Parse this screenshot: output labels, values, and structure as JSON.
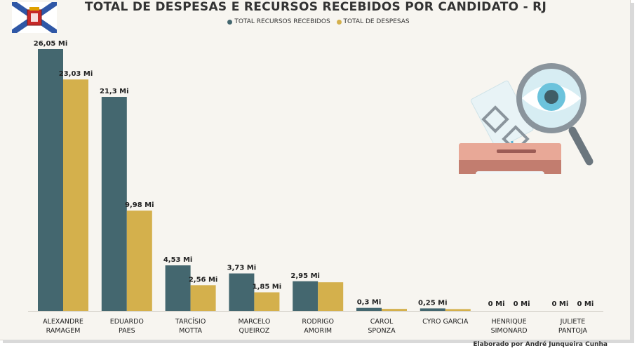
{
  "header": {
    "title": "TOTAL DE DESPESAS E RECURSOS RECEBIDOS POR CANDIDATO - RJ"
  },
  "footer": {
    "credit": "Elaborado por André Junqueira Cunha"
  },
  "colors": {
    "recursos": "#44676f",
    "despesas": "#d4b04c",
    "background": "#f7f5f0"
  },
  "icons": {
    "flag": "rio-de-janeiro-flag-icon",
    "illustration": "ballot-box-magnifier-icon"
  },
  "chart_data": {
    "type": "bar",
    "title": "TOTAL DE DESPESAS E RECURSOS RECEBIDOS POR CANDIDATO - RJ",
    "legend_position": "top-center",
    "grid": false,
    "categories": [
      [
        "ALEXANDRE",
        "RAMAGEM"
      ],
      [
        "EDUARDO",
        "PAES"
      ],
      [
        "TARCÍSIO",
        "MOTTA"
      ],
      [
        "MARCELO",
        "QUEIROZ"
      ],
      [
        "RODRIGO",
        "AMORIM"
      ],
      [
        "CAROL",
        "SPONZA"
      ],
      [
        "CYRO GARCIA"
      ],
      [
        "HENRIQUE",
        "SIMONARD"
      ],
      [
        "JULIETE",
        "PANTOJA"
      ]
    ],
    "series": [
      {
        "name": "TOTAL RECURSOS RECEBIDOS",
        "color": "#44676f",
        "values": [
          26.05,
          21.3,
          4.53,
          3.73,
          2.95,
          0.3,
          0.25,
          0,
          0
        ],
        "labels": [
          "26,05 Mi",
          "21,3 Mi",
          "4,53 Mi",
          "3,73 Mi",
          "2,95 Mi",
          "0,3 Mi",
          "0,25 Mi",
          "0 Mi",
          "0 Mi"
        ]
      },
      {
        "name": "TOTAL DE DESPESAS",
        "color": "#d4b04c",
        "values": [
          23.03,
          9.98,
          2.56,
          1.85,
          2.85,
          0.2,
          0.18,
          0,
          0
        ],
        "labels": [
          "23,03 Mi",
          "9,98 Mi",
          "2,56 Mi",
          "1,85 Mi",
          "",
          "",
          "",
          "0 Mi",
          "0 Mi"
        ]
      }
    ]
  }
}
